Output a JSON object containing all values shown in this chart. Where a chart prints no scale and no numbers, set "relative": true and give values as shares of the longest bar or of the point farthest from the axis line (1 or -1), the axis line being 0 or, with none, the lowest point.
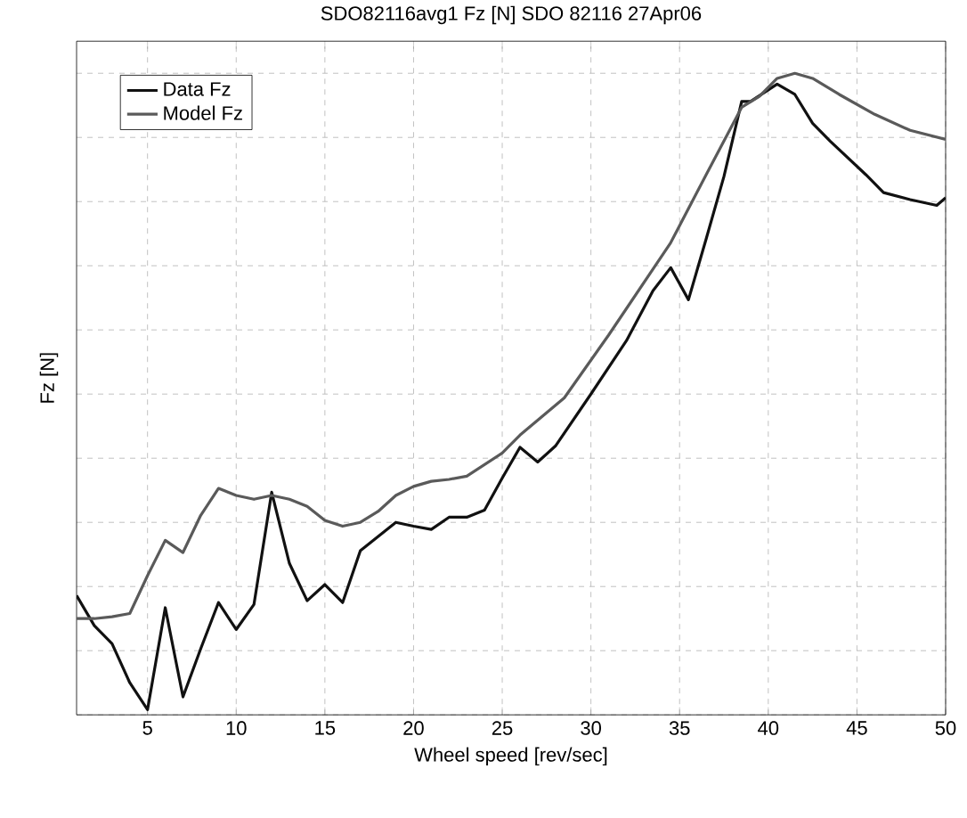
{
  "chart_data": {
    "type": "line",
    "title": "SDO82116avg1 Fz [N] SDO 82116  27Apr06",
    "xlabel": "Wheel speed [rev/sec]",
    "ylabel": "Fz [N]",
    "relative": true,
    "xlim": [
      1,
      50
    ],
    "xticks": [
      5,
      10,
      15,
      20,
      25,
      30,
      35,
      40,
      45,
      50
    ],
    "grid": true,
    "legend": "top left",
    "line_style": "solid",
    "series": [
      {
        "name": "Data Fz",
        "color": "#111111",
        "x": [
          1,
          2,
          3,
          4,
          5,
          6,
          7,
          8,
          9,
          10,
          11,
          12,
          13,
          14,
          15,
          16,
          17,
          18,
          19,
          20,
          21,
          22,
          23,
          24,
          25,
          26,
          27,
          28,
          30,
          32,
          33.5,
          34.5,
          35.5,
          36.5,
          37.5,
          38.5,
          39,
          40.5,
          41.5,
          42.5,
          43.5,
          45.5,
          46.5,
          48,
          49.5,
          50
        ],
        "values": [
          0.186,
          0.139,
          0.111,
          0.05,
          0.008,
          0.167,
          0.028,
          0.103,
          0.175,
          0.133,
          0.172,
          0.347,
          0.236,
          0.178,
          0.203,
          0.175,
          0.256,
          0.278,
          0.3,
          0.294,
          0.289,
          0.308,
          0.308,
          0.319,
          0.369,
          0.417,
          0.394,
          0.419,
          0.5,
          0.583,
          0.661,
          0.697,
          0.647,
          0.742,
          0.839,
          0.956,
          0.956,
          0.983,
          0.967,
          0.922,
          0.894,
          0.842,
          0.814,
          0.803,
          0.794,
          0.806
        ]
      },
      {
        "name": "Model Fz",
        "color": "#5a5a5a",
        "x": [
          1,
          2,
          3,
          4,
          5,
          6,
          7,
          8,
          9,
          10,
          11,
          12,
          13,
          14,
          15,
          16,
          17,
          18,
          19,
          20,
          21,
          22,
          23,
          25,
          26,
          28.5,
          31,
          34.5,
          36.5,
          38.5,
          39.5,
          40.5,
          41.5,
          42.5,
          44,
          46,
          48,
          50
        ],
        "values": [
          0.15,
          0.15,
          0.153,
          0.158,
          0.217,
          0.272,
          0.253,
          0.311,
          0.353,
          0.342,
          0.336,
          0.342,
          0.336,
          0.325,
          0.303,
          0.294,
          0.3,
          0.317,
          0.342,
          0.356,
          0.364,
          0.367,
          0.372,
          0.408,
          0.436,
          0.494,
          0.592,
          0.736,
          0.842,
          0.947,
          0.964,
          0.992,
          1,
          0.992,
          0.967,
          0.936,
          0.911,
          0.897
        ]
      }
    ]
  }
}
